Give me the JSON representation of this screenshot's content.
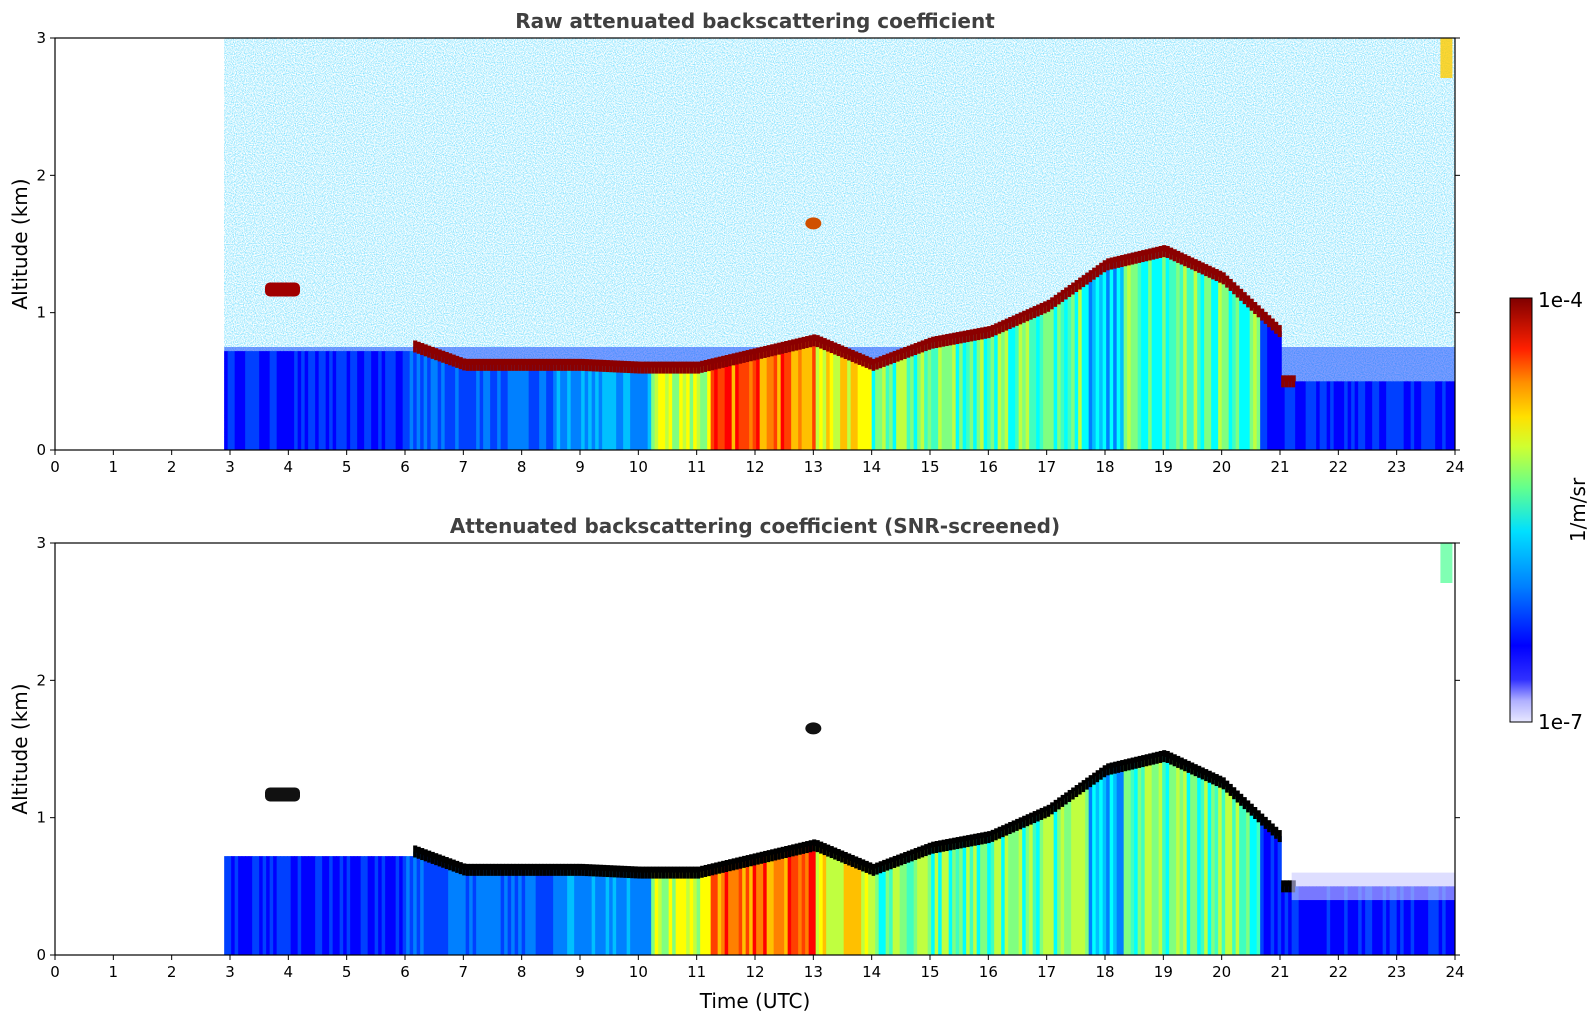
{
  "chart_data": [
    {
      "type": "heatmap",
      "title": "Raw attenuated backscattering coefficient",
      "xlabel": "",
      "ylabel": "Altitude (km)",
      "xlim": [
        0,
        24
      ],
      "ylim": [
        0,
        3
      ],
      "xticks": [
        "0",
        "1",
        "2",
        "3",
        "4",
        "5",
        "6",
        "7",
        "8",
        "9",
        "10",
        "11",
        "12",
        "13",
        "14",
        "15",
        "16",
        "17",
        "18",
        "19",
        "20",
        "21",
        "22",
        "23",
        "24"
      ],
      "yticks": [
        "0",
        "1",
        "2",
        "3"
      ],
      "data_start_hour": 2.9,
      "data_end_hour": 24,
      "color_scale": "log",
      "features": {
        "cloud_layer_top_hours": [
          3.6,
          4.2
        ],
        "cloud_layer_top_alt_km": [
          1.12,
          1.18
        ],
        "boundary_layer_top": [
          {
            "x": 6.1,
            "y": 0.76
          },
          {
            "x": 7.0,
            "y": 0.62
          },
          {
            "x": 8.0,
            "y": 0.62
          },
          {
            "x": 9.0,
            "y": 0.62
          },
          {
            "x": 10.0,
            "y": 0.6
          },
          {
            "x": 11.0,
            "y": 0.6
          },
          {
            "x": 12.0,
            "y": 0.7
          },
          {
            "x": 13.0,
            "y": 0.8
          },
          {
            "x": 14.0,
            "y": 0.62
          },
          {
            "x": 15.0,
            "y": 0.78
          },
          {
            "x": 16.0,
            "y": 0.86
          },
          {
            "x": 17.0,
            "y": 1.05
          },
          {
            "x": 18.0,
            "y": 1.35
          },
          {
            "x": 19.0,
            "y": 1.45
          },
          {
            "x": 20.0,
            "y": 1.25
          },
          {
            "x": 21.0,
            "y": 0.85
          }
        ],
        "isolated_cloud": {
          "x": 13.0,
          "y": 1.65
        }
      }
    },
    {
      "type": "heatmap",
      "title": "Attenuated backscattering coefficient (SNR-screened)",
      "xlabel": "Time (UTC)",
      "ylabel": "Altitude (km)",
      "xlim": [
        0,
        24
      ],
      "ylim": [
        0,
        3
      ],
      "xticks": [
        "0",
        "1",
        "2",
        "3",
        "4",
        "5",
        "6",
        "7",
        "8",
        "9",
        "10",
        "11",
        "12",
        "13",
        "14",
        "15",
        "16",
        "17",
        "18",
        "19",
        "20",
        "21",
        "22",
        "23",
        "24"
      ],
      "yticks": [
        "0",
        "1",
        "2",
        "3"
      ],
      "data_start_hour": 2.9,
      "data_end_hour": 24,
      "color_scale": "log"
    }
  ],
  "colorbar": {
    "label": "1/m/sr",
    "max_label": "1e-4",
    "min_label": "1e-7",
    "colormap": "jet",
    "colors": [
      "#e8e8ff",
      "#b0b0ff",
      "#6060ff",
      "#0000ff",
      "#0040ff",
      "#0080ff",
      "#00c0ff",
      "#00ffff",
      "#40ffc0",
      "#80ff80",
      "#c0ff40",
      "#ffff00",
      "#ffc000",
      "#ff8000",
      "#ff4000",
      "#ff0000",
      "#c00000",
      "#800000"
    ]
  }
}
